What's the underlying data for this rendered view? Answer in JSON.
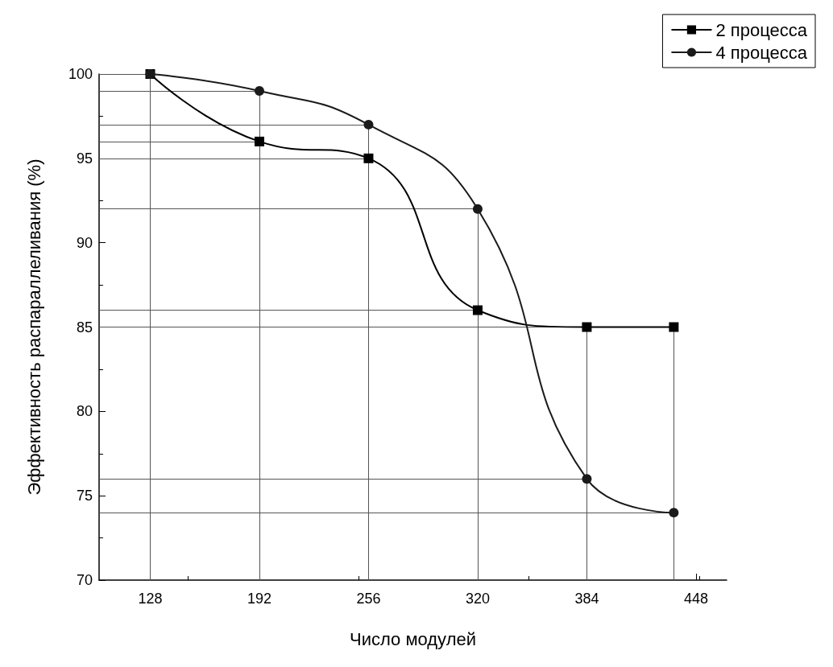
{
  "chart_data": {
    "type": "line",
    "xlabel": "Число модулей",
    "ylabel": "Эффективность распараллеливания (%)",
    "xlim": [
      98,
      466
    ],
    "xticks": [
      128,
      192,
      256,
      320,
      384,
      448
    ],
    "ylim": [
      70,
      100
    ],
    "yticks": [
      70,
      75,
      80,
      85,
      90,
      95,
      100
    ],
    "series": [
      {
        "name": "2 процесса",
        "color": "#000000",
        "marker": "square",
        "x": [
          128,
          192,
          256,
          320,
          384,
          435
        ],
        "values": [
          100,
          96,
          95,
          86,
          85,
          85
        ]
      },
      {
        "name": "4 процесса",
        "color": "#1a1a1a",
        "marker": "circle",
        "x": [
          128,
          192,
          256,
          320,
          384,
          435
        ],
        "values": [
          100,
          99,
          97,
          92,
          76,
          74
        ]
      }
    ],
    "ref_lines": [
      {
        "axis": "y",
        "value": 100
      },
      {
        "axis": "y",
        "value": 99
      },
      {
        "axis": "y",
        "value": 97
      },
      {
        "axis": "y",
        "value": 96
      },
      {
        "axis": "y",
        "value": 95
      },
      {
        "axis": "y",
        "value": 92
      },
      {
        "axis": "y",
        "value": 86
      },
      {
        "axis": "y",
        "value": 85
      },
      {
        "axis": "y",
        "value": 76
      },
      {
        "axis": "y",
        "value": 74
      },
      {
        "axis": "x",
        "value": 128
      },
      {
        "axis": "x",
        "value": 192
      },
      {
        "axis": "x",
        "value": 256
      },
      {
        "axis": "x",
        "value": 320
      },
      {
        "axis": "x",
        "value": 384
      },
      {
        "axis": "x",
        "value": 435
      }
    ],
    "legend": "top right",
    "line_style": "solid",
    "grid": false
  }
}
